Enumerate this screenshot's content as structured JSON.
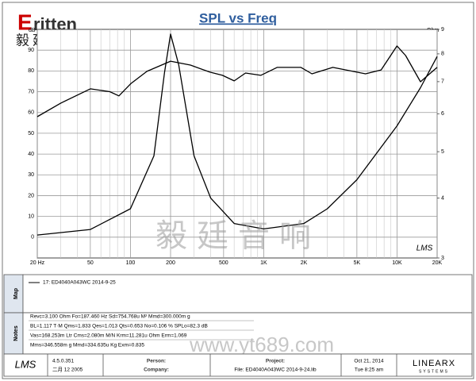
{
  "logo": {
    "name": "ritten",
    "chinese": "毅廷音响"
  },
  "watermark": {
    "chinese": "毅廷音响",
    "url": "www.yt689.com"
  },
  "panels": {
    "map": "Map",
    "notes": "Notes"
  },
  "notes": [
    "Revc=3.100 Ohm  Fo=187.460 Hz  Sd=754.768u M²  Mmd=300.000m g",
    "BL=1.117 T·M  Qms=1.833  Qes=1.013  Qts=0.653  No=0.106 %  SPLo=82.3 dB",
    "Vas=168.253m Ltr  Cms=2.080m M/N  Krm=11.281u Ohm  Erm=1.069",
    "Mms=346.558m g  Mmd=334.635u Kg  Exm=0.835"
  ],
  "footer": {
    "logo": "LMS",
    "version": "4.5.0.351",
    "build_date": "二月 12 2005",
    "person": "Person:",
    "company": "Company:",
    "project": "Project:",
    "file": "File: ED4040A043WC    2014-9-24.lib",
    "day": "Oct 21, 2014",
    "time": "Tue  8:25 am",
    "brand": "LINEARX",
    "brand_sub": "SYSTEMS"
  },
  "chart_data": {
    "type": "line",
    "title": "SPL vs Freq",
    "ylabel": "dB",
    "y2label": "Ohm",
    "annotation": "LMS",
    "xlog": true,
    "y2log": true,
    "grid": true,
    "xlim": [
      20,
      20000
    ],
    "ylim": [
      -10,
      100
    ],
    "y2lim": [
      3,
      9
    ],
    "xticks": [
      {
        "value": 20,
        "label": "20 Hz"
      },
      50,
      100,
      200,
      500,
      {
        "value": 1000,
        "label": "1K"
      },
      {
        "value": 2000,
        "label": "2K"
      },
      {
        "value": 5000,
        "label": "5K"
      },
      {
        "value": 10000,
        "label": "10K"
      },
      {
        "value": 20000,
        "label": "20K"
      }
    ],
    "xgrid": [
      30,
      40,
      60,
      70,
      80,
      90,
      300,
      400,
      600,
      700,
      800,
      900,
      3000,
      4000,
      6000,
      7000,
      8000,
      9000
    ],
    "yticks": [
      0,
      10,
      20,
      30,
      40,
      50,
      60,
      70,
      80,
      90
    ],
    "y2ticks": [
      3,
      4,
      5,
      6,
      7,
      8,
      9
    ],
    "series": [
      {
        "name": "17: ED4040A043WC   2014-9-25",
        "color": "#000000",
        "x": [
          20,
          30,
          50,
          70,
          82,
          101,
          133,
          200,
          282,
          395,
          490,
          600,
          730,
          950,
          1260,
          1900,
          2300,
          3300,
          5800,
          7600,
          10000,
          11600,
          15000,
          20000
        ],
        "values": [
          58,
          64.5,
          71.4,
          70,
          68,
          74,
          79.8,
          84.7,
          82.8,
          79.4,
          77.9,
          75.2,
          79,
          77.9,
          81.7,
          81.7,
          78.6,
          81.7,
          78.6,
          80.5,
          92,
          87.4,
          74.8,
          81.7
        ]
      },
      {
        "color": "#000000",
        "axis": "y2",
        "x": [
          20,
          50,
          100,
          150,
          180,
          200,
          230,
          300,
          400,
          600,
          1000,
          2000,
          3000,
          5000,
          10000,
          15000,
          20000
        ],
        "values": [
          3.35,
          3.44,
          3.8,
          4.9,
          7.3,
          8.8,
          7.6,
          4.9,
          4.0,
          3.54,
          3.45,
          3.54,
          3.8,
          4.37,
          5.66,
          6.8,
          7.9
        ]
      }
    ]
  }
}
